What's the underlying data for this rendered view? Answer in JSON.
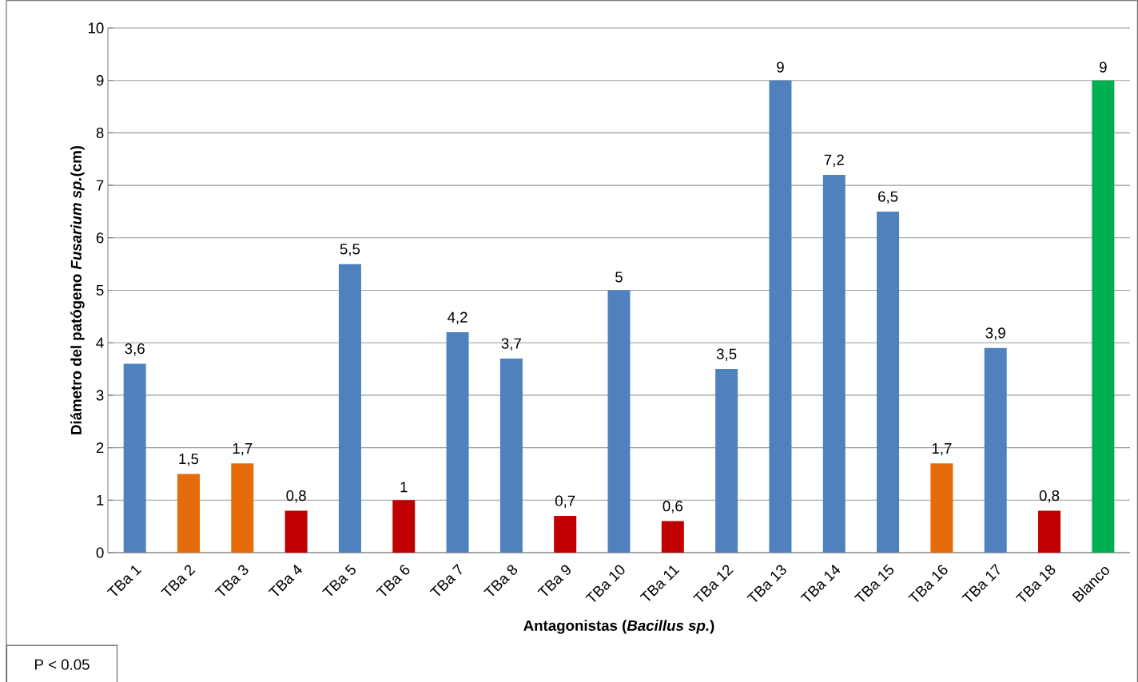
{
  "chart_data": {
    "type": "bar",
    "categories": [
      "TBa 1",
      "TBa 2",
      "TBa 3",
      "TBa 4",
      "TBa 5",
      "TBa 6",
      "TBa 7",
      "TBa 8",
      "TBa 9",
      "TBa 10",
      "TBa 11",
      "TBa 12",
      "TBa 13",
      "TBa 14",
      "TBa 15",
      "TBa 16",
      "TBa 17",
      "TBa 18",
      "Blanco"
    ],
    "values": [
      3.6,
      1.5,
      1.7,
      0.8,
      5.5,
      1,
      4.2,
      3.7,
      0.7,
      5,
      0.6,
      3.5,
      9,
      7.2,
      6.5,
      1.7,
      3.9,
      0.8,
      9
    ],
    "value_labels": [
      "3,6",
      "1,5",
      "1,7",
      "0,8",
      "5,5",
      "1",
      "4,2",
      "3,7",
      "0,7",
      "5",
      "0,6",
      "3,5",
      "9",
      "7,2",
      "6,5",
      "1,7",
      "3,9",
      "0,8",
      "9"
    ],
    "colors": [
      "#4f81bd",
      "#e46c0a",
      "#e46c0a",
      "#c00000",
      "#4f81bd",
      "#c00000",
      "#4f81bd",
      "#4f81bd",
      "#c00000",
      "#4f81bd",
      "#c00000",
      "#4f81bd",
      "#4f81bd",
      "#4f81bd",
      "#4f81bd",
      "#e46c0a",
      "#4f81bd",
      "#c00000",
      "#00b050"
    ],
    "xlabel": "Antagonistas (*Bacillus sp.*)",
    "ylabel": "Diámetro del patógeno *Fusarium sp.*(cm)",
    "ylim": [
      0,
      10
    ],
    "yticks": [
      0,
      1,
      2,
      3,
      4,
      5,
      6,
      7,
      8,
      9,
      10
    ],
    "grid": "y",
    "annotations": [
      "P < 0.05"
    ]
  }
}
